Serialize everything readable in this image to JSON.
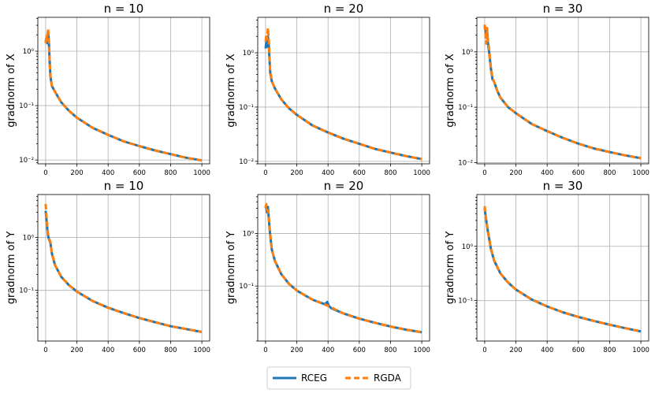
{
  "legend": {
    "entries": [
      {
        "label": "RCEG",
        "color": "#1f77b4",
        "style": "solid"
      },
      {
        "label": "RGDA",
        "color": "#ff7f0e",
        "style": "dashed"
      }
    ]
  },
  "chart_data": [
    {
      "type": "line",
      "title": "n = 10",
      "xlabel": "",
      "ylabel": "gradnorm of X",
      "xlim": [
        -50,
        1050
      ],
      "ylim": [
        0.0085,
        4.2
      ],
      "yscale": "log",
      "xticks": [
        0,
        200,
        400,
        600,
        800,
        1000
      ],
      "yticks": [
        {
          "value": 0.01,
          "label": "10⁻²"
        },
        {
          "value": 0.1,
          "label": "10⁻¹"
        },
        {
          "value": 1,
          "label": "10⁰"
        }
      ],
      "series": [
        {
          "name": "RCEG",
          "x": [
            0,
            5,
            10,
            15,
            20,
            25,
            30,
            40,
            60,
            100,
            150,
            200,
            300,
            400,
            500,
            600,
            700,
            800,
            900,
            1000
          ],
          "y": [
            1.5,
            1.7,
            1.4,
            2.3,
            1.6,
            0.7,
            0.35,
            0.23,
            0.18,
            0.115,
            0.08,
            0.06,
            0.039,
            0.029,
            0.022,
            0.018,
            0.015,
            0.0128,
            0.011,
            0.0098
          ]
        },
        {
          "name": "RGDA",
          "x": [
            0,
            5,
            10,
            15,
            20,
            25,
            30,
            40,
            60,
            100,
            150,
            200,
            300,
            400,
            500,
            600,
            700,
            800,
            900,
            1000
          ],
          "y": [
            1.4,
            2.0,
            1.6,
            2.6,
            1.8,
            0.75,
            0.36,
            0.23,
            0.18,
            0.115,
            0.08,
            0.06,
            0.039,
            0.029,
            0.022,
            0.018,
            0.015,
            0.0128,
            0.011,
            0.0098
          ]
        }
      ]
    },
    {
      "type": "line",
      "title": "n = 20",
      "xlabel": "",
      "ylabel": "gradnorm of X",
      "xlim": [
        -50,
        1050
      ],
      "ylim": [
        0.009,
        4.5
      ],
      "yscale": "log",
      "xticks": [
        0,
        200,
        400,
        600,
        800,
        1000
      ],
      "yticks": [
        {
          "value": 0.01,
          "label": "10⁻²"
        },
        {
          "value": 0.1,
          "label": "10⁻¹"
        },
        {
          "value": 1,
          "label": "10⁰"
        }
      ],
      "series": [
        {
          "name": "RCEG",
          "x": [
            0,
            5,
            10,
            15,
            20,
            25,
            30,
            40,
            60,
            100,
            150,
            200,
            300,
            400,
            500,
            600,
            700,
            800,
            900,
            1000
          ],
          "y": [
            1.2,
            1.6,
            1.3,
            2.0,
            1.5,
            0.75,
            0.42,
            0.3,
            0.22,
            0.14,
            0.095,
            0.072,
            0.046,
            0.034,
            0.026,
            0.021,
            0.017,
            0.0145,
            0.0125,
            0.011
          ]
        },
        {
          "name": "RGDA",
          "x": [
            0,
            5,
            10,
            15,
            20,
            25,
            30,
            40,
            60,
            100,
            150,
            200,
            300,
            400,
            500,
            600,
            700,
            800,
            900,
            1000
          ],
          "y": [
            1.6,
            2.2,
            1.8,
            2.9,
            1.9,
            0.85,
            0.45,
            0.3,
            0.22,
            0.14,
            0.095,
            0.072,
            0.046,
            0.034,
            0.026,
            0.021,
            0.017,
            0.0145,
            0.0125,
            0.011
          ]
        }
      ]
    },
    {
      "type": "line",
      "title": "n = 30",
      "xlabel": "",
      "ylabel": "gradnorm of X",
      "xlim": [
        -50,
        1050
      ],
      "ylim": [
        0.0095,
        4.2
      ],
      "yscale": "log",
      "xticks": [
        0,
        200,
        400,
        600,
        800,
        1000
      ],
      "yticks": [
        {
          "value": 0.01,
          "label": "10⁻²"
        },
        {
          "value": 0.1,
          "label": "10⁻¹"
        },
        {
          "value": 1,
          "label": "10⁰"
        }
      ],
      "series": [
        {
          "name": "RCEG",
          "x": [
            0,
            5,
            10,
            15,
            20,
            30,
            40,
            50,
            60,
            80,
            100,
            150,
            200,
            300,
            400,
            500,
            600,
            700,
            800,
            900,
            1000
          ],
          "y": [
            2.8,
            2.5,
            1.8,
            2.4,
            1.5,
            0.9,
            0.5,
            0.32,
            0.29,
            0.2,
            0.15,
            0.1,
            0.078,
            0.05,
            0.037,
            0.028,
            0.022,
            0.018,
            0.0155,
            0.0135,
            0.012
          ]
        },
        {
          "name": "RGDA",
          "x": [
            0,
            5,
            10,
            15,
            20,
            30,
            40,
            50,
            60,
            80,
            100,
            150,
            200,
            300,
            400,
            500,
            600,
            700,
            800,
            900,
            1000
          ],
          "y": [
            3.1,
            2.0,
            1.4,
            2.7,
            1.7,
            1.0,
            0.52,
            0.33,
            0.29,
            0.2,
            0.15,
            0.1,
            0.078,
            0.05,
            0.037,
            0.028,
            0.022,
            0.018,
            0.0155,
            0.0135,
            0.012
          ]
        }
      ]
    },
    {
      "type": "line",
      "title": "n = 10",
      "xlabel": "",
      "ylabel": "gradnorm of Y",
      "xlim": [
        -50,
        1050
      ],
      "ylim": [
        0.011,
        6.5
      ],
      "yscale": "log",
      "xticks": [
        0,
        200,
        400,
        600,
        800,
        1000
      ],
      "yticks": [
        {
          "value": 0.1,
          "label": "10⁻¹"
        },
        {
          "value": 1,
          "label": "10⁰"
        }
      ],
      "series": [
        {
          "name": "RCEG",
          "x": [
            0,
            5,
            10,
            15,
            20,
            30,
            40,
            60,
            100,
            150,
            200,
            300,
            400,
            500,
            600,
            700,
            800,
            900,
            1000
          ],
          "y": [
            3.2,
            2.2,
            1.5,
            1.1,
            0.95,
            0.8,
            0.5,
            0.3,
            0.18,
            0.125,
            0.095,
            0.063,
            0.047,
            0.037,
            0.03,
            0.025,
            0.021,
            0.0185,
            0.0163
          ]
        },
        {
          "name": "RGDA",
          "x": [
            0,
            5,
            10,
            15,
            20,
            30,
            40,
            60,
            100,
            150,
            200,
            300,
            400,
            500,
            600,
            700,
            800,
            900,
            1000
          ],
          "y": [
            4.3,
            2.6,
            1.7,
            1.2,
            1.0,
            0.82,
            0.5,
            0.3,
            0.18,
            0.125,
            0.095,
            0.063,
            0.047,
            0.037,
            0.03,
            0.025,
            0.021,
            0.0185,
            0.0163
          ]
        }
      ]
    },
    {
      "type": "line",
      "title": "n = 20",
      "xlabel": "",
      "ylabel": "gradnorm of Y",
      "xlim": [
        -50,
        1050
      ],
      "ylim": [
        0.009,
        5.5
      ],
      "yscale": "log",
      "xticks": [
        0,
        200,
        400,
        600,
        800,
        1000
      ],
      "yticks": [
        {
          "value": 0.1,
          "label": "10⁻¹"
        },
        {
          "value": 1,
          "label": "10⁰"
        }
      ],
      "series": [
        {
          "name": "RCEG",
          "x": [
            0,
            5,
            10,
            15,
            20,
            25,
            30,
            40,
            60,
            100,
            150,
            200,
            300,
            380,
            395,
            405,
            420,
            500,
            600,
            700,
            800,
            900,
            1000
          ],
          "y": [
            3.4,
            3.0,
            2.5,
            3.2,
            2.0,
            1.3,
            0.9,
            0.5,
            0.3,
            0.17,
            0.11,
            0.082,
            0.055,
            0.045,
            0.05,
            0.042,
            0.038,
            0.03,
            0.024,
            0.02,
            0.017,
            0.0148,
            0.0132
          ]
        },
        {
          "name": "RGDA",
          "x": [
            0,
            5,
            10,
            15,
            20,
            25,
            30,
            40,
            60,
            100,
            150,
            200,
            300,
            400,
            500,
            600,
            700,
            800,
            900,
            1000
          ],
          "y": [
            3.0,
            3.6,
            2.8,
            2.7,
            2.1,
            1.4,
            0.95,
            0.5,
            0.3,
            0.17,
            0.11,
            0.082,
            0.055,
            0.042,
            0.03,
            0.024,
            0.02,
            0.017,
            0.0148,
            0.0132
          ]
        }
      ]
    },
    {
      "type": "line",
      "title": "n = 30",
      "xlabel": "",
      "ylabel": "gradnorm of Y",
      "xlim": [
        -50,
        1050
      ],
      "ylim": [
        0.018,
        9.0
      ],
      "yscale": "log",
      "xticks": [
        0,
        200,
        400,
        600,
        800,
        1000
      ],
      "yticks": [
        {
          "value": 0.1,
          "label": "10⁻¹"
        },
        {
          "value": 1,
          "label": "10⁰"
        }
      ],
      "series": [
        {
          "name": "RCEG",
          "x": [
            0,
            5,
            10,
            15,
            20,
            30,
            40,
            60,
            100,
            150,
            200,
            300,
            400,
            500,
            600,
            700,
            800,
            900,
            1000
          ],
          "y": [
            5.0,
            3.8,
            3.0,
            2.4,
            1.9,
            1.3,
            0.9,
            0.55,
            0.32,
            0.215,
            0.16,
            0.105,
            0.078,
            0.061,
            0.05,
            0.042,
            0.036,
            0.031,
            0.027
          ]
        },
        {
          "name": "RGDA",
          "x": [
            0,
            5,
            10,
            15,
            20,
            30,
            40,
            60,
            100,
            150,
            200,
            300,
            400,
            500,
            600,
            700,
            800,
            900,
            1000
          ],
          "y": [
            5.5,
            4.0,
            3.1,
            2.5,
            2.0,
            1.35,
            0.92,
            0.56,
            0.32,
            0.215,
            0.16,
            0.105,
            0.078,
            0.061,
            0.05,
            0.042,
            0.036,
            0.031,
            0.027
          ]
        }
      ]
    }
  ]
}
